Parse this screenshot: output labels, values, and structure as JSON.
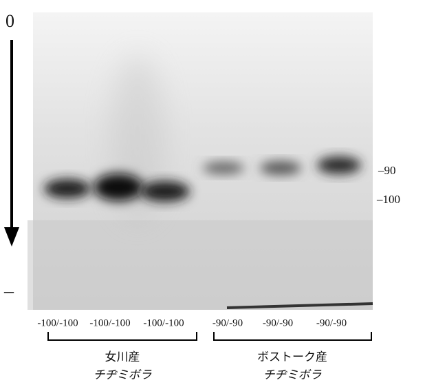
{
  "origin_label": "0",
  "end_label": "–",
  "markers": [
    "–90",
    "–100"
  ],
  "lanes": [
    "-100/-100",
    "-100/-100",
    "-100/-100",
    "-90/-90",
    "-90/-90",
    "-90/-90"
  ],
  "groups": [
    {
      "place": "女川産",
      "species": "チヂミボラ"
    },
    {
      "place": "ボストーク産",
      "species": "チヂミボラ"
    }
  ]
}
